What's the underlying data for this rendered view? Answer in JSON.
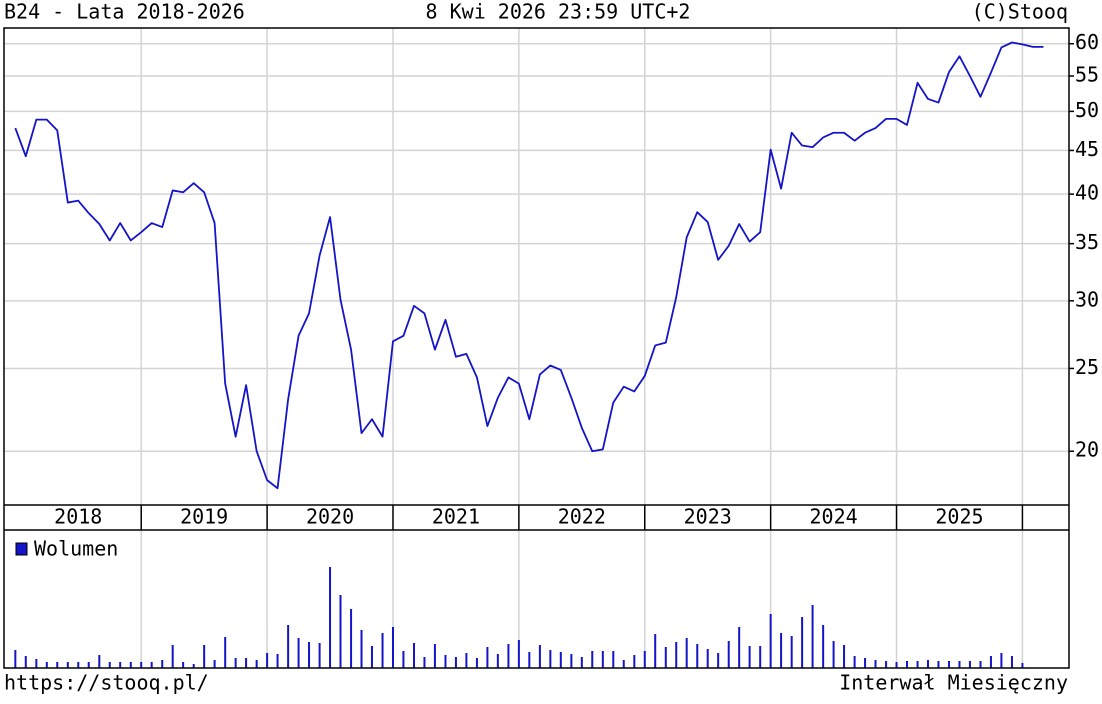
{
  "chart_data": {
    "type": "line",
    "title": "B24 - Lata 2018-2026",
    "date": "8 Kwi 2026 23:59 UTC+2",
    "source": "(C)Stooq",
    "footer_left": "https://stooq.pl/",
    "footer_right": "Interwał Miesięczny",
    "color": "#1414c8",
    "log_scale": true,
    "grid": true,
    "x": [
      2018,
      2018.083,
      2018.167,
      2018.25,
      2018.333,
      2018.417,
      2018.5,
      2018.583,
      2018.667,
      2018.75,
      2018.833,
      2018.917,
      2019,
      2019.083,
      2019.167,
      2019.25,
      2019.333,
      2019.417,
      2019.5,
      2019.583,
      2019.667,
      2019.75,
      2019.833,
      2019.917,
      2020,
      2020.083,
      2020.167,
      2020.25,
      2020.333,
      2020.417,
      2020.5,
      2020.583,
      2020.667,
      2020.75,
      2020.833,
      2020.917,
      2021,
      2021.083,
      2021.167,
      2021.25,
      2021.333,
      2021.417,
      2021.5,
      2021.583,
      2021.667,
      2021.75,
      2021.833,
      2021.917,
      2022,
      2022.083,
      2022.167,
      2022.25,
      2022.333,
      2022.417,
      2022.5,
      2022.583,
      2022.667,
      2022.75,
      2022.833,
      2022.917,
      2023,
      2023.083,
      2023.167,
      2023.25,
      2023.333,
      2023.417,
      2023.5,
      2023.583,
      2023.667,
      2023.75,
      2023.833,
      2023.917,
      2024,
      2024.083,
      2024.167,
      2024.25,
      2024.333,
      2024.417,
      2024.5,
      2024.583,
      2024.667,
      2024.75,
      2024.833,
      2024.917,
      2025,
      2025.083,
      2025.167,
      2025.25,
      2025.333,
      2025.417,
      2025.5,
      2025.583,
      2025.667,
      2025.75,
      2025.833,
      2025.917,
      2026,
      2026.083,
      2026.167
    ],
    "values": [
      47.8,
      44.3,
      48.9,
      48.9,
      47.5,
      39.1,
      39.3,
      38.0,
      36.9,
      35.3,
      37.0,
      35.3,
      36.1,
      37.0,
      36.6,
      40.4,
      40.2,
      41.2,
      40.2,
      37.0,
      24.0,
      20.8,
      23.9,
      20.0,
      18.5,
      18.1,
      23.0,
      27.3,
      29.0,
      33.9,
      37.6,
      30.1,
      26.3,
      21.0,
      21.8,
      20.8,
      26.9,
      27.3,
      29.6,
      29.0,
      26.3,
      28.5,
      25.8,
      26.0,
      24.4,
      21.4,
      23.1,
      24.4,
      24.0,
      21.8,
      24.6,
      25.2,
      24.9,
      23.1,
      21.3,
      20.0,
      20.1,
      22.8,
      23.8,
      23.5,
      24.5,
      26.6,
      26.8,
      30.3,
      35.6,
      38.1,
      37.1,
      33.5,
      34.8,
      36.9,
      35.2,
      36.1,
      45.1,
      40.6,
      47.2,
      45.6,
      45.4,
      46.6,
      47.2,
      47.2,
      46.2,
      47.2,
      47.8,
      49.0,
      49.0,
      48.2,
      54.0,
      51.7,
      51.2,
      55.6,
      58.0,
      55.0,
      52.0,
      55.5,
      59.4,
      60.2,
      59.9,
      59.5,
      59.5
    ],
    "xlim": [
      2017.91,
      2026.37
    ],
    "xticks": [
      {
        "value": 2018.5,
        "label": "2018"
      },
      {
        "value": 2019.5,
        "label": "2019"
      },
      {
        "value": 2020.5,
        "label": "2020"
      },
      {
        "value": 2021.5,
        "label": "2021"
      },
      {
        "value": 2022.5,
        "label": "2022"
      },
      {
        "value": 2023.5,
        "label": "2023"
      },
      {
        "value": 2024.5,
        "label": "2024"
      },
      {
        "value": 2025.5,
        "label": "2025"
      }
    ],
    "xgrid": [
      2019,
      2020,
      2021,
      2022,
      2023,
      2024,
      2025,
      2026
    ],
    "ylim": [
      17.3,
      62.6
    ],
    "yticks": [
      20,
      25,
      30,
      35,
      40,
      45,
      50,
      55,
      60
    ],
    "volume": {
      "name": "Wolumen",
      "color": "#1414c8",
      "ylim": [
        0,
        138
      ],
      "values": [
        18,
        12,
        9,
        6,
        6,
        6,
        6,
        6,
        13,
        6,
        6,
        6,
        6,
        6,
        8,
        23,
        6,
        4,
        23,
        8,
        31,
        10,
        10,
        8,
        15,
        14,
        43,
        30,
        26,
        25,
        101,
        73,
        59,
        38,
        22,
        35,
        41,
        17,
        25,
        11,
        24,
        13,
        11,
        15,
        10,
        21,
        14,
        24,
        28,
        16,
        23,
        18,
        16,
        14,
        11,
        17,
        17,
        17,
        8,
        13,
        17,
        34,
        21,
        26,
        30,
        24,
        19,
        15,
        27,
        41,
        22,
        22,
        54,
        35,
        32,
        51,
        63,
        43,
        27,
        23,
        12,
        10,
        8,
        7,
        6,
        7,
        7,
        8,
        7,
        7,
        7,
        7,
        7,
        12,
        15,
        12,
        5,
        null,
        null
      ]
    }
  }
}
